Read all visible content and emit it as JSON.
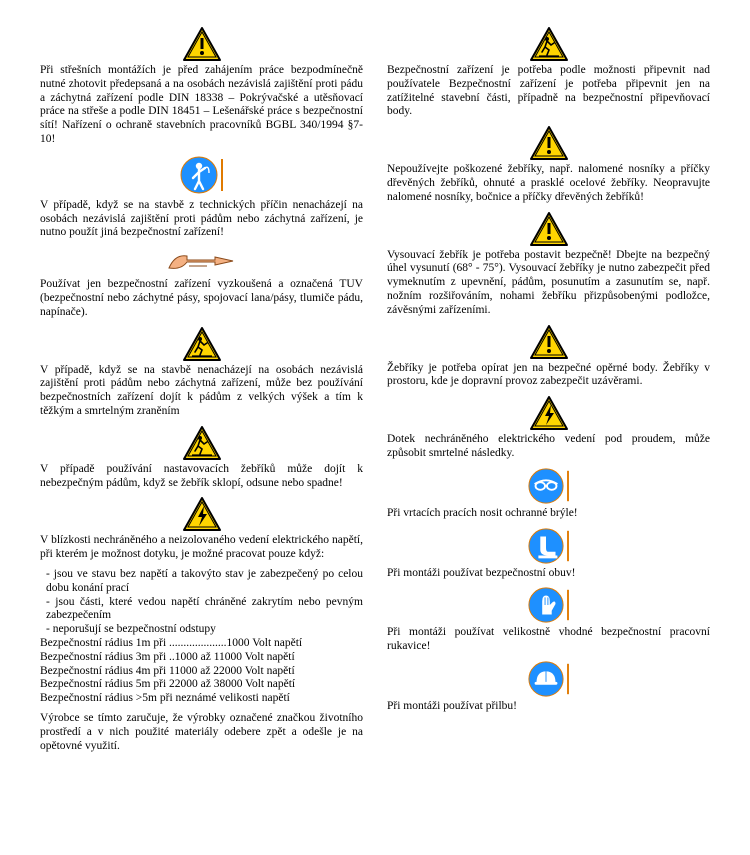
{
  "icons": {
    "warn_triangle_color_border": "#000000",
    "warn_triangle_color_fill": "#ffd500",
    "warn_bang_color": "#000000",
    "slip_figure_color": "#000000",
    "volt_color": "#000000",
    "blue_circle_fill": "#1e90ff",
    "blue_circle_border": "#e07a00",
    "blue_rule_color": "#e07a00",
    "hand_fill": "#f4b183",
    "hand_stroke": "#8a4a1a"
  },
  "left": {
    "s1": "Při střešních montážích je před zahájením práce bezpodmínečně nutné zhotovit předepsaná a na osobách nezávislá zajištění proti pádu a záchytná zařízení podle DIN 18338 – Pokrývačské a utěsňovací práce na střeše a podle DIN 18451 – Lešenářské práce s bezpečnostní sítí! Nařízení o ochraně stavebních pracovníků BGBL 340/1994 §7-10!",
    "s2": "V případě, když se na stavbě z technických příčin nenacházejí na osobách nezávislá zajištění proti pádům nebo záchytná zařízení, je nutno použít jiná bezpečnostní zařízení!",
    "s3": "Používat jen bezpečnostní zařízení vyzkoušená a označená TUV (bezpečnostní nebo záchytné pásy, spojovací lana/pásy, tlumiče pádu, napínače).",
    "s4": "V případě, když se na  stavbě nenacházejí na osobách nezávislá zajištění proti pádům nebo záchytná zařízení, může bez používání bezpečnostních zařízení dojít k pádům z velkých výšek a tím k těžkým a smrtelným zraněním",
    "s5": "V případě používání nastavovacích žebříků může dojít k nebezpečným pádům, když se žebřík sklopí, odsune nebo spadne!",
    "s6_intro": "V blízkosti nechráněného a neizolovaného vedení elektrického napětí, při kterém je možnost dotyku, je možné pracovat pouze když:",
    "s6_items": [
      "- jsou ve stavu bez napětí a takovýto stav je zabezpečený po celou dobu konání prací",
      "- jsou části, které vedou napětí chráněné zakrytím nebo pevným zabezpečením",
      "- neporušují se bezpečnostní odstupy"
    ],
    "s6_radius": [
      "Bezpečnostní rádius   1m při ....................1000 Volt napětí",
      "Bezpečnostní rádius   3m při ..1000 až 11000 Volt napětí",
      "Bezpečnostní rádius   4m při 11000 až 22000 Volt napětí",
      "Bezpečnostní rádius   5m při 22000 až 38000 Volt napětí",
      "Bezpečnostní rádius  >5m při neznámé velikosti napětí"
    ],
    "s7": "Výrobce se tímto zaručuje, že výrobky označené značkou životního prostředí a v nich použité materiály odebere zpět a odešle je na opětovné využití."
  },
  "right": {
    "s1": "Bezpečnostní zařízení je potřeba podle možnosti připevnit nad používatele Bezpečnostní zařízení je potřeba připevnit jen na zatížitelné stavební části, případně na bezpečnostní připevňovací body.",
    "s2": "Nepoužívejte poškozené žebříky, např. nalomené nosníky a příčky dřevěných žebříků, ohnuté a prasklé ocelové žebříky. Neopravujte nalomené nosníky, bočnice a příčky dřevěných žebříků!",
    "s3": "Vysouvací žebřík je potřeba postavit bezpečně! Dbejte na bezpečný úhel vysunutí (68° - 75°). Vysouvací žebříky je nutno zabezpečit před vymeknutím z upevnění, pádům, posunutím a zasunutím se, např. nožním rozšiřováním, nohami žebříku přizpůsobenými podložce, závěsnými zařízeními.",
    "s4": "Žebříky je potřeba opírat jen na bezpečné opěrné body. Žebříky v prostoru, kde je dopravní provoz zabezpečit uzávěrami.",
    "s5": "Dotek nechráněného elektrického vedení pod proudem, může způsobit smrtelné následky.",
    "s6": "Při vrtacích pracích nosit ochranné brýle!",
    "s7": "Při montáži používat bezpečnostní obuv!",
    "s8": "Při montáži používat velikostně vhodné bezpečnostní pracovní rukavice!",
    "s9": "Při montáži používat přilbu!"
  }
}
